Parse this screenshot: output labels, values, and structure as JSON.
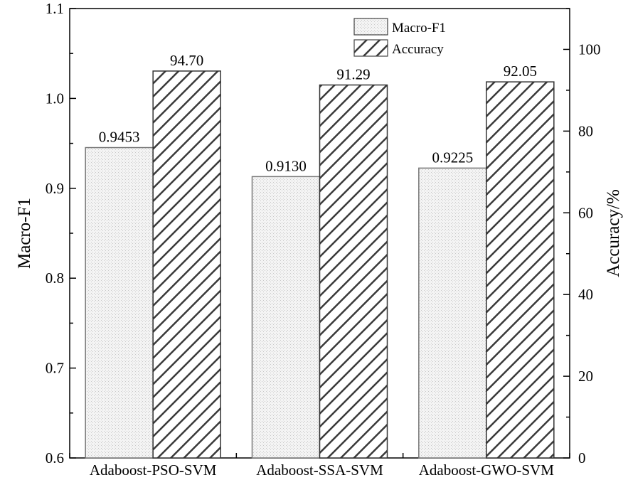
{
  "chart_data": {
    "type": "bar",
    "categories": [
      "Adaboost-PSO-SVM",
      "Adaboost-SSA-SVM",
      "Adaboost-GWO-SVM"
    ],
    "series": [
      {
        "name": "Macro-F1",
        "axis": "left",
        "values": [
          0.9453,
          0.913,
          0.9225
        ],
        "labels": [
          "0.9453",
          "0.9130",
          "0.9225"
        ],
        "pattern": "dotted-light",
        "color": "#e8e8e8"
      },
      {
        "name": "Accuracy",
        "axis": "right",
        "values": [
          94.7,
          91.29,
          92.05
        ],
        "labels": [
          "94.70",
          "91.29",
          "92.05"
        ],
        "pattern": "diagonal-hatch",
        "color": "#3a3a3a"
      }
    ],
    "y_left": {
      "label": "Macro-F1",
      "ylim": [
        0.6,
        1.1
      ],
      "ticks": [
        "0.6",
        "0.7",
        "0.8",
        "0.9",
        "1.0",
        "1.1"
      ]
    },
    "y_right": {
      "label": "Accuracy/%",
      "ylim": [
        0,
        110
      ],
      "ticks": [
        "0",
        "20",
        "40",
        "60",
        "80",
        "100"
      ]
    },
    "legend": {
      "position": "top-center"
    },
    "grid": false
  }
}
